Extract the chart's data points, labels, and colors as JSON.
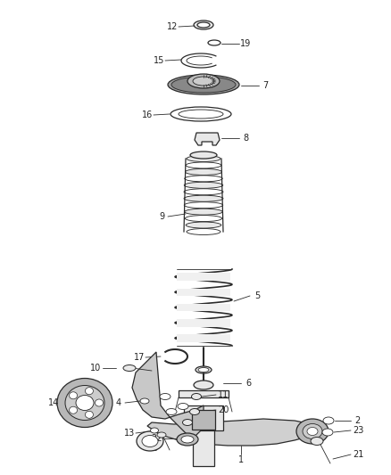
{
  "background_color": "#ffffff",
  "fig_width": 4.38,
  "fig_height": 5.33,
  "dpi": 100,
  "line_color": "#333333",
  "label_color": "#222222",
  "label_fontsize": 7.0
}
